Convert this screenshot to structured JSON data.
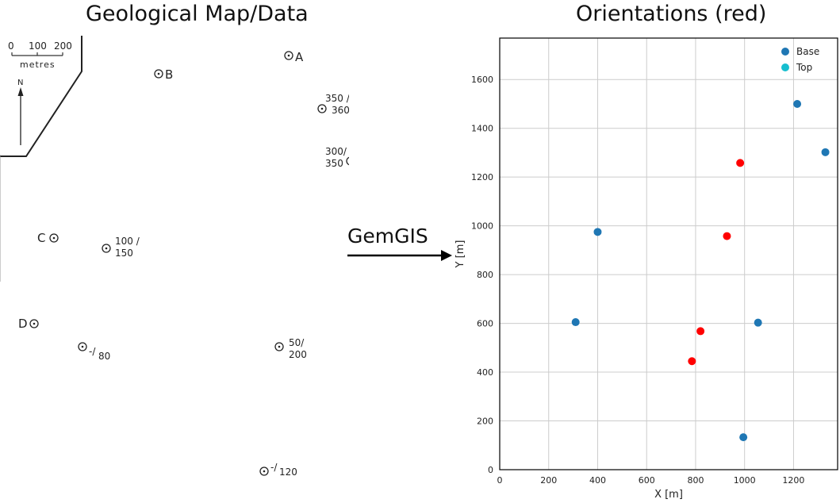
{
  "left_panel": {
    "title": "Geological Map/Data",
    "scale_bar": {
      "ticks": [
        "0",
        "100",
        "200"
      ],
      "unit": "metres"
    },
    "north_label": "N",
    "points": [
      {
        "label": "A"
      },
      {
        "label": "B"
      },
      {
        "label": "C"
      },
      {
        "label": "D"
      }
    ],
    "orientations": [
      {
        "line1": "350 /",
        "line2": "360"
      },
      {
        "line1": "300/",
        "line2": "350"
      },
      {
        "line1": "100 /",
        "line2": "150"
      },
      {
        "line1": "-/",
        "line2": "80"
      },
      {
        "line1": "50/",
        "line2": "200"
      },
      {
        "line1": "-/",
        "line2": "120"
      }
    ]
  },
  "arrow": {
    "label": "GemGIS"
  },
  "chart_data": {
    "type": "scatter",
    "title": "Orientations (red)",
    "xlabel": "X [m]",
    "ylabel": "Y [m]",
    "xlim": [
      0,
      1380
    ],
    "ylim": [
      0,
      1770
    ],
    "xticks": [
      0,
      200,
      400,
      600,
      800,
      1000,
      1200
    ],
    "yticks": [
      0,
      200,
      400,
      600,
      800,
      1000,
      1200,
      1400,
      1600
    ],
    "grid": true,
    "legend_position": "top-right",
    "series": [
      {
        "name": "Base",
        "color": "#1f77b4",
        "points": [
          [
            310,
            605
          ],
          [
            400,
            975
          ],
          [
            1215,
            1500
          ],
          [
            1330,
            1302
          ],
          [
            1055,
            603
          ],
          [
            995,
            133
          ]
        ]
      },
      {
        "name": "Top",
        "color": "#17becf",
        "points": []
      },
      {
        "color": "#ff0000",
        "points": [
          [
            785,
            445
          ],
          [
            820,
            568
          ],
          [
            928,
            958
          ],
          [
            982,
            1258
          ]
        ]
      }
    ]
  }
}
